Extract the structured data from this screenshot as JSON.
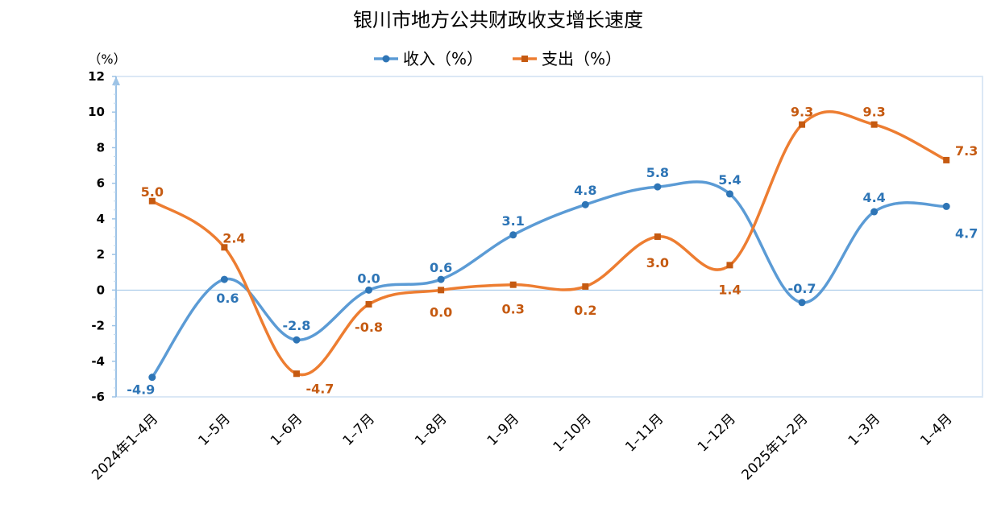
{
  "chart_data": {
    "type": "line",
    "title": "银川市地方公共财政收支增长速度",
    "ylabel": "（%）",
    "ylim": [
      -6,
      12
    ],
    "yticks": [
      12,
      10,
      8,
      6,
      4,
      2,
      0,
      -2,
      -4,
      -6
    ],
    "categories": [
      "2024年1–4月",
      "1–5月",
      "1–6月",
      "1–7月",
      "1–8月",
      "1–9月",
      "1–10月",
      "1–11月",
      "1–12月",
      "2025年1–2月",
      "1–3月",
      "1–4月"
    ],
    "legend_position": "top-center",
    "grid": false,
    "series": [
      {
        "name": "收入（%）",
        "color": "#5b9bd5",
        "label_color": "#2e75b6",
        "marker": "circle",
        "values": [
          -4.9,
          0.6,
          -2.8,
          0.0,
          0.6,
          3.1,
          4.8,
          5.8,
          5.4,
          -0.7,
          4.4,
          4.7
        ],
        "labels": [
          "-4.9",
          "0.6",
          "-2.8",
          "0.0",
          "0.6",
          "3.1",
          "4.8",
          "5.8",
          "5.4",
          "-0.7",
          "4.4",
          "4.7"
        ]
      },
      {
        "name": "支出（%）",
        "color": "#ed7d31",
        "label_color": "#c55a11",
        "marker": "square",
        "values": [
          5.0,
          2.4,
          -4.7,
          -0.8,
          0.0,
          0.3,
          0.2,
          3.0,
          1.4,
          9.3,
          9.3,
          7.3
        ],
        "labels": [
          "5.0",
          "2.4",
          "-4.7",
          "-0.8",
          "0.0",
          "0.3",
          "0.2",
          "3.0",
          "1.4",
          "9.3",
          "9.3",
          "7.3"
        ]
      }
    ]
  }
}
